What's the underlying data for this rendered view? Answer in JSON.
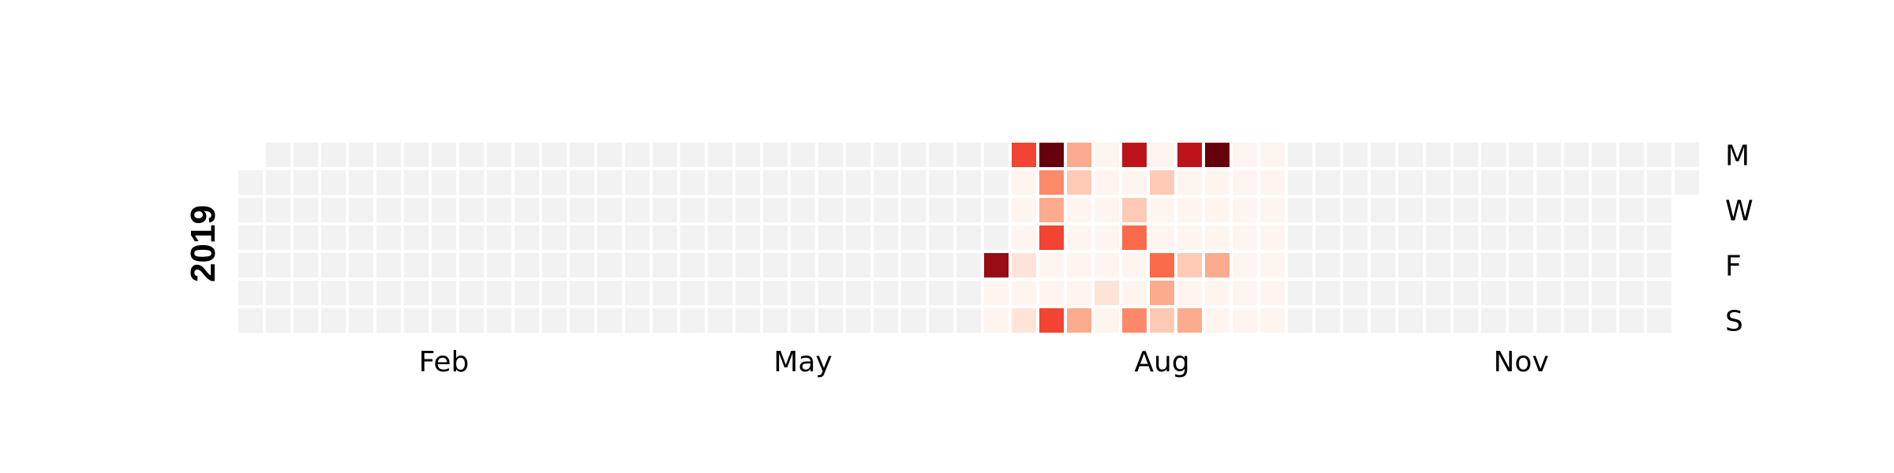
{
  "chart_data": {
    "type": "heatmap",
    "title": "",
    "year_label": "2019",
    "month_ticks": [
      {
        "label": "Feb",
        "week": 7
      },
      {
        "label": "May",
        "week": 20
      },
      {
        "label": "Aug",
        "week": 33
      },
      {
        "label": "Nov",
        "week": 46
      }
    ],
    "day_labels": [
      {
        "label": "M",
        "day": 0
      },
      {
        "label": "W",
        "day": 2
      },
      {
        "label": "F",
        "day": 4
      },
      {
        "label": "S",
        "day": 6
      }
    ],
    "num_weeks": 53,
    "first_day_index": 1,
    "last_day_index": 1,
    "colormap": "Reds",
    "empty_color": "#f2f2f2",
    "value_range": [
      0,
      10
    ],
    "nonzero_start_week": 28,
    "nonzero_end_week": 37,
    "activity": [
      {
        "week": 27,
        "days": [
          null,
          null,
          null,
          null,
          9,
          0,
          0
        ]
      },
      {
        "week": 28,
        "days": [
          6,
          0,
          0,
          0,
          1,
          0,
          1
        ]
      },
      {
        "week": 29,
        "days": [
          10,
          4,
          3,
          6,
          0,
          0,
          6
        ]
      },
      {
        "week": 30,
        "days": [
          3,
          2,
          0,
          0,
          0,
          0,
          3
        ]
      },
      {
        "week": 31,
        "days": [
          0,
          0,
          0,
          0,
          0,
          1,
          0
        ]
      },
      {
        "week": 32,
        "days": [
          8,
          0,
          2,
          5,
          0,
          0,
          4
        ]
      },
      {
        "week": 33,
        "days": [
          0,
          2,
          0,
          0,
          5,
          3,
          2
        ]
      },
      {
        "week": 34,
        "days": [
          8,
          0,
          0,
          0,
          2,
          0,
          3
        ]
      },
      {
        "week": 35,
        "days": [
          10,
          0,
          0,
          0,
          3,
          0,
          0
        ]
      },
      {
        "week": 36,
        "days": [
          0,
          0,
          null,
          null,
          null,
          null,
          null
        ]
      }
    ]
  }
}
